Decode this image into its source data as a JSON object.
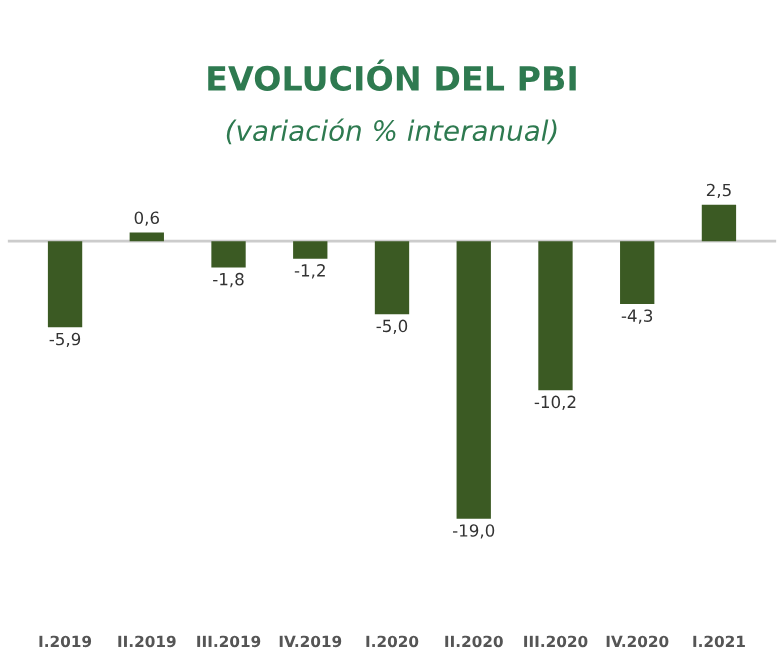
{
  "chart_data": {
    "type": "bar",
    "title": "EVOLUCIÓN DEL PBI",
    "subtitle": "(variación % interanual)",
    "categories": [
      "I.2019",
      "II.2019",
      "III.2019",
      "IV.2019",
      "I.2020",
      "II.2020",
      "III.2020",
      "IV.2020",
      "I.2021"
    ],
    "values": [
      -5.9,
      0.6,
      -1.8,
      -1.2,
      -5.0,
      -19.0,
      -10.2,
      -4.3,
      2.5
    ],
    "value_labels": [
      "-5,9",
      "0,6",
      "-1,8",
      "-1,2",
      "-5,0",
      "-19,0",
      "-10,2",
      "-4,3",
      "2,5"
    ],
    "color": "#3b5a23",
    "grid": false,
    "legend": false
  }
}
